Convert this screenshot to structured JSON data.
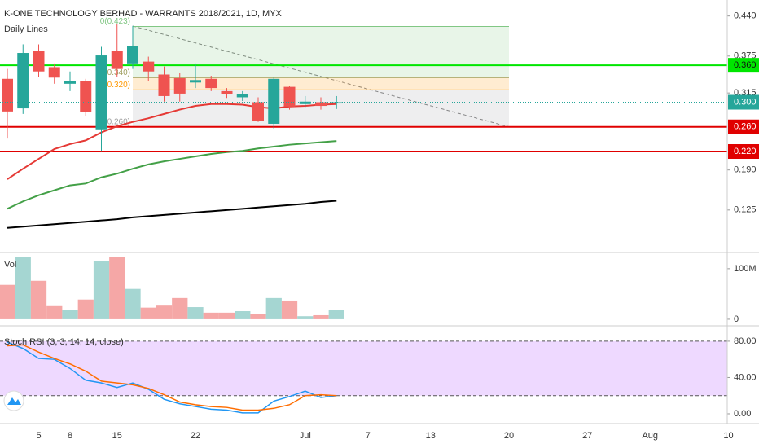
{
  "chart_data": [
    {
      "type": "candlestick",
      "title": "K-ONE TECHNOLOGY BERHAD - WARRANTS 2018/2021, 1D, MYX",
      "subtitle": "Daily Lines",
      "categories": [
        null,
        null,
        "5",
        null,
        "8",
        null,
        null,
        "15",
        null,
        null,
        null,
        null,
        "22",
        null,
        null,
        null,
        null,
        null,
        null,
        "Jul",
        null,
        null,
        null,
        "7",
        null,
        null,
        null,
        "13",
        null,
        null,
        null,
        null,
        "20",
        null,
        null,
        null,
        null,
        "27",
        null,
        null,
        null,
        "Aug",
        null,
        null,
        null,
        null,
        "10"
      ],
      "open": [
        0.338,
        0.29,
        0.384,
        0.357,
        0.33,
        0.334,
        0.256,
        0.384,
        0.363,
        0.366,
        0.345,
        0.339,
        0.332,
        0.338,
        0.318,
        0.308,
        0.3,
        0.265,
        0.325,
        0.297,
        0.3,
        0.298,
        null,
        null,
        null,
        null,
        null,
        null,
        null,
        null,
        null,
        null,
        null,
        null,
        null,
        null,
        null,
        null,
        null,
        null,
        null,
        null,
        null,
        null,
        null,
        null,
        null
      ],
      "high": [
        0.354,
        0.394,
        0.394,
        0.363,
        0.35,
        0.338,
        0.39,
        0.427,
        0.424,
        0.374,
        0.358,
        0.347,
        0.363,
        0.343,
        0.323,
        0.318,
        0.308,
        0.341,
        0.327,
        0.31,
        0.308,
        0.31,
        null,
        null,
        null,
        null,
        null,
        null,
        null,
        null,
        null,
        null,
        null,
        null,
        null,
        null,
        null,
        null,
        null,
        null,
        null,
        null,
        null,
        null,
        null,
        null,
        null
      ],
      "low": [
        0.241,
        0.281,
        0.341,
        0.33,
        0.318,
        0.278,
        0.221,
        0.341,
        0.354,
        0.334,
        0.301,
        0.301,
        0.323,
        0.318,
        0.307,
        0.302,
        0.268,
        0.257,
        0.288,
        0.292,
        0.288,
        0.289,
        null,
        null,
        null,
        null,
        null,
        null,
        null,
        null,
        null,
        null,
        null,
        null,
        null,
        null,
        null,
        null,
        null,
        null,
        null,
        null,
        null,
        null,
        null,
        null,
        null
      ],
      "close": [
        0.285,
        0.38,
        0.35,
        0.34,
        0.335,
        0.284,
        0.376,
        0.354,
        0.391,
        0.35,
        0.31,
        0.314,
        0.336,
        0.323,
        0.313,
        0.313,
        0.27,
        0.338,
        0.293,
        0.301,
        0.294,
        0.3,
        null,
        null,
        null,
        null,
        null,
        null,
        null,
        null,
        null,
        null,
        null,
        null,
        null,
        null,
        null,
        null,
        null,
        null,
        null,
        null,
        null,
        null,
        null,
        null,
        null
      ],
      "up_color": "#26a69a",
      "down_color": "#ef5350",
      "series": [
        {
          "color": "#e53935",
          "values": [
            0.175,
            0.192,
            0.208,
            0.224,
            0.232,
            0.238,
            0.251,
            0.261,
            0.268,
            0.274,
            0.281,
            0.288,
            0.294,
            0.297,
            0.297,
            0.296,
            0.292,
            0.29,
            0.293,
            0.294,
            0.296,
            0.297,
            null,
            null,
            null,
            null,
            null,
            null,
            null,
            null,
            null,
            null,
            null,
            null,
            null,
            null,
            null,
            null,
            null,
            null,
            null,
            null,
            null,
            null,
            null,
            null,
            null
          ]
        },
        {
          "color": "#43a047",
          "values": [
            0.127,
            0.139,
            0.149,
            0.157,
            0.165,
            0.168,
            0.178,
            0.184,
            0.192,
            0.199,
            0.204,
            0.208,
            0.212,
            0.216,
            0.219,
            0.221,
            0.225,
            0.228,
            0.231,
            0.233,
            0.235,
            0.237,
            null,
            null,
            null,
            null,
            null,
            null,
            null,
            null,
            null,
            null,
            null,
            null,
            null,
            null,
            null,
            null,
            null,
            null,
            null,
            null,
            null,
            null,
            null,
            null,
            null
          ]
        },
        {
          "color": "#000000",
          "values": [
            0.096,
            0.098,
            0.1,
            0.102,
            0.104,
            0.106,
            0.108,
            0.11,
            0.113,
            0.115,
            0.117,
            0.119,
            0.121,
            0.123,
            0.125,
            0.127,
            0.129,
            0.131,
            0.133,
            0.135,
            0.138,
            0.14,
            null,
            null,
            null,
            null,
            null,
            null,
            null,
            null,
            null,
            null,
            null,
            null,
            null,
            null,
            null,
            null,
            null,
            null,
            null,
            null,
            null,
            null,
            null,
            null,
            null
          ]
        }
      ],
      "levels": [
        {
          "value": 0.36,
          "label": "0.360",
          "color": "#00e600"
        },
        {
          "value": 0.26,
          "label": "0.260",
          "color": "#e00000"
        },
        {
          "value": 0.22,
          "label": "0.220",
          "color": "#e00000"
        }
      ],
      "last_price": {
        "value": 0.3,
        "label": "0.300",
        "color": "#26a69a"
      },
      "fib_levels": [
        {
          "value": 0.423,
          "label": "0(0.423)",
          "color": "#81c784"
        },
        {
          "value": 0.34,
          "label": "(0.340)",
          "color": "#9e9e5e"
        },
        {
          "value": 0.32,
          "label": "(0.320)",
          "color": "#ff9800"
        },
        {
          "value": 0.26,
          "label": "(0.260)",
          "color": "#9e9e9e"
        }
      ],
      "fib_fills": [
        "rgba(76,175,80,0.13)",
        "rgba(255,152,0,0.18)",
        "rgba(120,123,134,0.13)"
      ],
      "ylim": [
        0.056,
        0.466
      ],
      "yticks": [
        {
          "value": 0.125,
          "label": "0.125"
        },
        {
          "value": 0.19,
          "label": "0.190"
        },
        {
          "value": 0.315,
          "label": "0.315"
        },
        {
          "value": 0.375,
          "label": "0.375"
        },
        {
          "value": 0.44,
          "label": "0.440"
        }
      ]
    },
    {
      "type": "bar",
      "title": "Vol",
      "values": [
        68,
        123,
        76,
        26,
        19,
        39,
        115,
        123,
        60,
        23,
        27,
        42,
        24,
        13,
        13,
        16,
        10,
        42,
        37,
        6,
        8,
        19,
        null,
        null,
        null,
        null,
        null,
        null,
        null,
        null,
        null,
        null,
        null,
        null,
        null,
        null,
        null,
        null,
        null,
        null,
        null,
        null,
        null,
        null,
        null,
        null,
        null
      ],
      "up_color": "#a5d6d2",
      "down_color": "#f5a7a6",
      "ylim": [
        -13,
        132
      ],
      "yticks": [
        0,
        {
          "value": 100,
          "label": "100M"
        }
      ]
    },
    {
      "type": "line",
      "title": "Stoch RSI (3, 3, 14, 14, close)",
      "series": [
        {
          "color": "#2196f3",
          "values": [
            79,
            72,
            61,
            60,
            50,
            37,
            34,
            29,
            34,
            27,
            16,
            11,
            8,
            5,
            4,
            1,
            1,
            14,
            19,
            25,
            18,
            20,
            null,
            null,
            null,
            null,
            null,
            null,
            null,
            null,
            null,
            null,
            null,
            null,
            null,
            null,
            null,
            null,
            null,
            null,
            null,
            null,
            null,
            null,
            null,
            null,
            null
          ]
        },
        {
          "color": "#ff6d00",
          "values": [
            75,
            76,
            68,
            61,
            55,
            47,
            36,
            34,
            32,
            28,
            21,
            13,
            10,
            8,
            7,
            4,
            4,
            6,
            10,
            20,
            21,
            20,
            null,
            null,
            null,
            null,
            null,
            null,
            null,
            null,
            null,
            null,
            null,
            null,
            null,
            null,
            null,
            null,
            null,
            null,
            null,
            null,
            null,
            null,
            null,
            null,
            null
          ]
        }
      ],
      "band": [
        20,
        80
      ],
      "band_color": "rgba(186,104,255,0.25)",
      "ylim": [
        -10.8,
        97
      ],
      "yticks": [
        {
          "value": 0,
          "label": "0.00"
        },
        {
          "value": 40,
          "label": "40.00"
        },
        {
          "value": 80,
          "label": "80.00"
        }
      ]
    }
  ]
}
